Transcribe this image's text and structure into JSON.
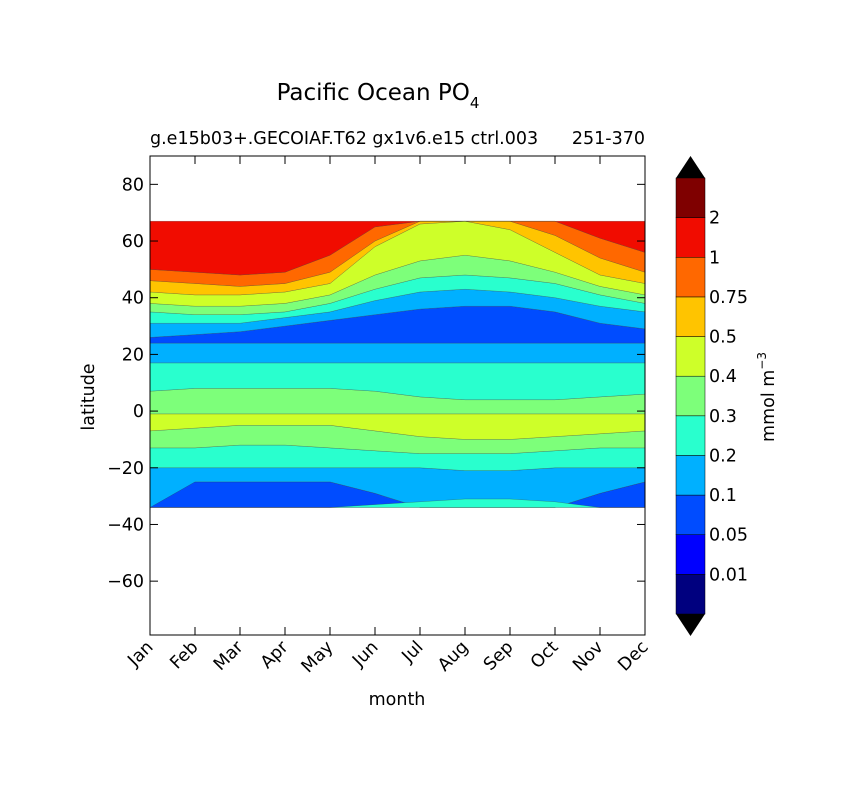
{
  "chart_data": {
    "type": "heatmap",
    "title_main": "Pacific Ocean PO",
    "title_sub": "4",
    "subtitle_left": "g.e15b03+.GECOIAF.T62 gx1v6.e15 ctrl.003",
    "subtitle_right": "251-370",
    "xlabel": "month",
    "ylabel": "latitude",
    "x_ticks": [
      "Jan",
      "Feb",
      "Mar",
      "Apr",
      "May",
      "Jun",
      "Jul",
      "Aug",
      "Sep",
      "Oct",
      "Nov",
      "Dec"
    ],
    "y_ticks": [
      80,
      60,
      40,
      20,
      0,
      -20,
      -40,
      -60
    ],
    "y_tick_labels": [
      "80",
      "60",
      "40",
      "20",
      "0",
      "−20",
      "−40",
      "−60"
    ],
    "ylim": [
      -79,
      90
    ],
    "data_lat_range": [
      -34,
      67
    ],
    "colorbar_label_main": "mmol m",
    "colorbar_label_exp": "−3",
    "colorbar_tick_labels": [
      "0.01",
      "0.05",
      "0.1",
      "0.2",
      "0.3",
      "0.4",
      "0.5",
      "0.75",
      "1",
      "2"
    ],
    "colorbar_colors": [
      "#00007f",
      "#0000ff",
      "#004cff",
      "#00b0ff",
      "#29ffce",
      "#7dff7a",
      "#ceff29",
      "#ffc400",
      "#ff6800",
      "#f10c00",
      "#7f0000"
    ],
    "extend_under_color": "#000000",
    "extend_over_color": "#000000",
    "bands": [
      {
        "level": 2,
        "lower": [
          -34,
          -34,
          -34,
          -34,
          -34,
          -34,
          -34,
          -34,
          -34,
          -34,
          -34,
          -34
        ],
        "upper": [
          -29,
          -25,
          -25,
          -25,
          -25,
          -29,
          -34,
          -34,
          -34,
          -34,
          -29,
          -25
        ]
      },
      {
        "level": 3,
        "lower": [
          -34,
          -25,
          -25,
          -25,
          -25,
          -29,
          -34,
          -34,
          -34,
          -34,
          -29,
          -25
        ],
        "upper": [
          -20,
          -20,
          -20,
          -20,
          -20,
          -20,
          -20,
          -21,
          -21,
          -20,
          -20,
          -20
        ]
      },
      {
        "level": 4,
        "lower": [
          -34,
          -34,
          -34,
          -34,
          -34,
          -34,
          -34,
          -34,
          -34,
          -34,
          -34,
          -34
        ],
        "upper": [
          -34,
          -34,
          -34,
          -34,
          -34,
          -33,
          -32,
          -31,
          -31,
          -32,
          -34,
          -34
        ]
      },
      {
        "level": 4,
        "lower": [
          -20,
          -20,
          -20,
          -20,
          -20,
          -20,
          -20,
          -21,
          -21,
          -20,
          -20,
          -20
        ],
        "upper": [
          -13,
          -13,
          -12,
          -12,
          -13,
          -14,
          -15,
          -15,
          -15,
          -14,
          -13,
          -13
        ]
      },
      {
        "level": 5,
        "lower": [
          -13,
          -13,
          -12,
          -12,
          -13,
          -14,
          -15,
          -15,
          -15,
          -14,
          -13,
          -13
        ],
        "upper": [
          -7,
          -6,
          -5,
          -5,
          -5,
          -7,
          -9,
          -10,
          -10,
          -9,
          -8,
          -7
        ]
      },
      {
        "level": 6,
        "lower": [
          -7,
          -6,
          -5,
          -5,
          -5,
          -7,
          -9,
          -10,
          -10,
          -9,
          -8,
          -7
        ],
        "upper": [
          -1,
          -1,
          -1,
          -1,
          -1,
          -1,
          -1,
          -1,
          -1,
          -1,
          -1,
          -1
        ]
      },
      {
        "level": 5,
        "lower": [
          -1,
          -1,
          -1,
          -1,
          -1,
          -1,
          -1,
          -1,
          -1,
          -1,
          -1,
          -1
        ],
        "upper": [
          7,
          8,
          8,
          8,
          8,
          7,
          5,
          4,
          4,
          4,
          5,
          6
        ]
      },
      {
        "level": 4,
        "lower": [
          7,
          8,
          8,
          8,
          8,
          7,
          5,
          4,
          4,
          4,
          5,
          6
        ],
        "upper": [
          17,
          17,
          17,
          17,
          17,
          17,
          17,
          17,
          17,
          17,
          17,
          17
        ]
      },
      {
        "level": 3,
        "lower": [
          17,
          17,
          17,
          17,
          17,
          17,
          17,
          17,
          17,
          17,
          17,
          17
        ],
        "upper": [
          24,
          24,
          24,
          24,
          24,
          24,
          24,
          24,
          24,
          24,
          24,
          24
        ]
      },
      {
        "level": 2,
        "lower": [
          24,
          24,
          24,
          24,
          24,
          24,
          24,
          24,
          24,
          24,
          24,
          24
        ],
        "upper": [
          26,
          27,
          28,
          30,
          32,
          34,
          36,
          37,
          37,
          35,
          31,
          29
        ]
      },
      {
        "level": 3,
        "lower": [
          26,
          27,
          28,
          30,
          32,
          34,
          36,
          37,
          37,
          35,
          31,
          29
        ],
        "upper": [
          31,
          31,
          31,
          33,
          35,
          39,
          42,
          43,
          42,
          40,
          37,
          35
        ]
      },
      {
        "level": 4,
        "lower": [
          31,
          31,
          31,
          33,
          35,
          39,
          42,
          43,
          42,
          40,
          37,
          35
        ],
        "upper": [
          35,
          34,
          34,
          35,
          38,
          43,
          47,
          48,
          47,
          45,
          41,
          38
        ]
      },
      {
        "level": 5,
        "lower": [
          35,
          34,
          34,
          35,
          38,
          43,
          47,
          48,
          47,
          45,
          41,
          38
        ],
        "upper": [
          38,
          37,
          37,
          38,
          41,
          48,
          53,
          55,
          53,
          49,
          44,
          41
        ]
      },
      {
        "level": 6,
        "lower": [
          38,
          37,
          37,
          38,
          41,
          48,
          53,
          55,
          53,
          49,
          44,
          41
        ],
        "upper": [
          42,
          41,
          41,
          42,
          45,
          58,
          66,
          67,
          64,
          56,
          48,
          45
        ]
      },
      {
        "level": 7,
        "lower": [
          42,
          41,
          41,
          42,
          45,
          58,
          66,
          67,
          64,
          56,
          48,
          45
        ],
        "upper": [
          46,
          45,
          44,
          45,
          49,
          60,
          67,
          67,
          67,
          62,
          54,
          49
        ]
      },
      {
        "level": 8,
        "lower": [
          46,
          45,
          44,
          45,
          49,
          60,
          67,
          67,
          67,
          62,
          54,
          49
        ],
        "upper": [
          50,
          49,
          48,
          49,
          55,
          65,
          67,
          67,
          67,
          67,
          61,
          56
        ]
      },
      {
        "level": 9,
        "lower": [
          50,
          49,
          48,
          49,
          55,
          65,
          67,
          67,
          67,
          67,
          61,
          56
        ],
        "upper": [
          67,
          67,
          67,
          67,
          67,
          67,
          67,
          67,
          67,
          67,
          67,
          67
        ]
      }
    ]
  }
}
